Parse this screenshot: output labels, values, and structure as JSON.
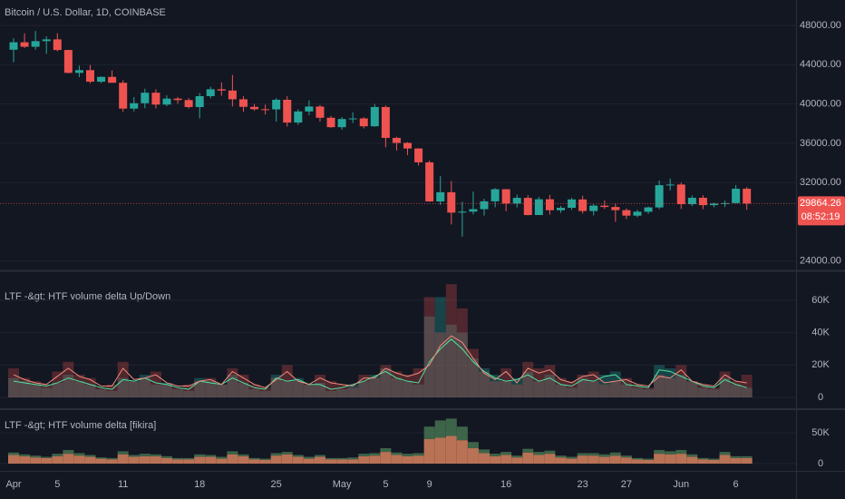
{
  "chart_data": [
    {
      "type": "candlestick",
      "title": "Bitcoin / U.S. Dollar, 1D, COINBASE",
      "categories": [
        "Apr",
        null,
        null,
        null,
        "5",
        null,
        null,
        null,
        null,
        null,
        "11",
        null,
        null,
        null,
        null,
        null,
        null,
        "18",
        null,
        null,
        null,
        null,
        null,
        null,
        "25",
        null,
        null,
        null,
        null,
        null,
        "May",
        null,
        null,
        null,
        "5",
        null,
        null,
        null,
        "9",
        null,
        null,
        null,
        null,
        null,
        null,
        "16",
        null,
        null,
        null,
        null,
        null,
        null,
        "23",
        null,
        null,
        null,
        "27",
        null,
        null,
        null,
        null,
        "Jun",
        null,
        null,
        null,
        null,
        "6",
        null
      ],
      "open": [
        45525,
        46285,
        45830,
        46400,
        46580,
        45500,
        43170,
        43450,
        42270,
        42760,
        42160,
        39530,
        40080,
        41150,
        39940,
        40550,
        40400,
        39690,
        40800,
        41500,
        41370,
        40480,
        39710,
        39470,
        39450,
        40430,
        38110,
        39240,
        39740,
        38600,
        37640,
        38470,
        38530,
        37730,
        39690,
        36550,
        36040,
        35470,
        34060,
        30080,
        31010,
        28940,
        29040,
        29290,
        30090,
        31320,
        29860,
        30440,
        28690,
        30300,
        29180,
        29430,
        30280,
        29100,
        29650,
        29510,
        29190,
        28630,
        29030,
        29470,
        31730,
        31800,
        29800,
        30450,
        29700,
        29860,
        29910,
        31370
      ],
      "high": [
        46700,
        47200,
        47440,
        46890,
        47200,
        45500,
        43900,
        43970,
        42800,
        43420,
        42420,
        40700,
        41560,
        41500,
        40870,
        40710,
        40600,
        41110,
        41760,
        42200,
        42960,
        40800,
        40000,
        39930,
        40600,
        40790,
        39460,
        40370,
        39900,
        38790,
        38670,
        39150,
        38650,
        40000,
        39850,
        36660,
        36120,
        35500,
        34240,
        32650,
        32150,
        30050,
        31080,
        30340,
        31440,
        31320,
        30780,
        30700,
        30540,
        30750,
        29620,
        30440,
        30660,
        29800,
        30190,
        29850,
        29380,
        29230,
        29550,
        32200,
        32400,
        31990,
        30680,
        30700,
        29950,
        30180,
        31750,
        31540
      ],
      "low": [
        44250,
        45700,
        45530,
        45120,
        45360,
        43120,
        42730,
        42110,
        42130,
        42400,
        39200,
        39250,
        39580,
        39550,
        39770,
        40030,
        39550,
        38540,
        40580,
        40850,
        39750,
        39200,
        39300,
        38930,
        38200,
        37700,
        37880,
        38870,
        38200,
        37580,
        37390,
        38060,
        37520,
        37680,
        35580,
        35270,
        34800,
        33730,
        30040,
        29730,
        27730,
        26500,
        28750,
        28630,
        29480,
        29080,
        29460,
        28660,
        28700,
        28740,
        28930,
        29230,
        28850,
        28650,
        29310,
        28010,
        28280,
        28470,
        28820,
        29300,
        31200,
        29310,
        29600,
        29290,
        29480,
        29510,
        29880,
        29220
      ],
      "close": [
        46285,
        45830,
        46400,
        46580,
        45500,
        43170,
        43450,
        42270,
        42760,
        42160,
        39530,
        40080,
        41150,
        39940,
        40550,
        40400,
        39690,
        40800,
        41500,
        41370,
        40480,
        39710,
        39470,
        39450,
        40430,
        38110,
        39240,
        39740,
        38600,
        37640,
        38470,
        38530,
        37730,
        39690,
        36550,
        36040,
        35470,
        34060,
        30080,
        31010,
        28940,
        29040,
        29290,
        30090,
        31320,
        29860,
        30440,
        28690,
        30300,
        29180,
        29430,
        30280,
        29100,
        29650,
        29510,
        29190,
        28630,
        29030,
        29470,
        31730,
        31800,
        29800,
        30450,
        29700,
        29860,
        29910,
        31370,
        29864.26
      ],
      "up_color": "#26a69a",
      "down_color": "#ef5350",
      "ylim": [
        23150,
        50590
      ],
      "yticks": [
        {
          "value": 48000,
          "label": "48000.00"
        },
        {
          "value": 44000,
          "label": "44000.00"
        },
        {
          "value": 40000,
          "label": "40000.00"
        },
        {
          "value": 36000,
          "label": "36000.00"
        },
        {
          "value": 32000,
          "label": "32000.00"
        },
        {
          "value": 24000,
          "label": "24000.00"
        }
      ],
      "grid": true,
      "last_price": {
        "value": 29864.26,
        "label": "29864.26"
      },
      "countdown": "08:52:19"
    },
    {
      "type": "bar",
      "title": "LTF -&gt; HTF volume delta Up/Down",
      "series": [
        {
          "type": "bar",
          "color": "rgba(38,166,154,0.32)",
          "values": [
            12000,
            10000,
            8000,
            6000,
            9000,
            14000,
            10000,
            8000,
            5000,
            4000,
            12000,
            10000,
            14000,
            8000,
            9000,
            5000,
            4000,
            12000,
            10000,
            8000,
            14000,
            9000,
            5000,
            4000,
            14000,
            10000,
            12000,
            8000,
            9000,
            4000,
            5000,
            8000,
            10000,
            14000,
            18000,
            12000,
            10000,
            8000,
            50000,
            62000,
            45000,
            40000,
            24000,
            18000,
            14000,
            10000,
            12000,
            16000,
            10000,
            14000,
            8000,
            6000,
            12000,
            10000,
            14000,
            16000,
            8000,
            6000,
            5000,
            20000,
            18000,
            14000,
            10000,
            6000,
            5000,
            12000,
            8000,
            6000
          ]
        },
        {
          "type": "bar",
          "color": "rgba(239,83,80,0.28)",
          "values": [
            18000,
            12000,
            10000,
            8000,
            16000,
            22000,
            14000,
            12000,
            6000,
            8000,
            22000,
            10000,
            12000,
            16000,
            8000,
            6000,
            8000,
            10000,
            12000,
            8000,
            18000,
            14000,
            8000,
            6000,
            12000,
            20000,
            10000,
            8000,
            14000,
            10000,
            8000,
            6000,
            14000,
            12000,
            20000,
            16000,
            14000,
            18000,
            62000,
            40000,
            70000,
            55000,
            30000,
            16000,
            10000,
            18000,
            8000,
            22000,
            18000,
            20000,
            12000,
            10000,
            14000,
            16000,
            8000,
            10000,
            12000,
            8000,
            6000,
            14000,
            12000,
            20000,
            10000,
            8000,
            6000,
            16000,
            10000,
            14000
          ]
        },
        {
          "type": "line",
          "color": "#4fe3a0",
          "values": [
            10000,
            9000,
            8000,
            7000,
            9000,
            12000,
            10000,
            8000,
            6000,
            5000,
            11000,
            10000,
            12000,
            9000,
            8000,
            6000,
            5000,
            10000,
            9000,
            8000,
            12000,
            9000,
            6000,
            5000,
            12000,
            10000,
            11000,
            8000,
            8000,
            5000,
            6000,
            8000,
            10000,
            13000,
            16000,
            12000,
            10000,
            9000,
            22000,
            30000,
            36000,
            30000,
            22000,
            16000,
            12000,
            10000,
            11000,
            14000,
            10000,
            12000,
            8000,
            7000,
            11000,
            10000,
            13000,
            14000,
            8000,
            7000,
            6000,
            17000,
            16000,
            13000,
            10000,
            7000,
            6000,
            11000,
            8000,
            6000
          ]
        },
        {
          "type": "line",
          "color": "#f08a7a",
          "values": [
            14000,
            11000,
            9000,
            8000,
            13000,
            18000,
            13000,
            11000,
            7000,
            7000,
            18000,
            11000,
            12000,
            14000,
            9000,
            7000,
            7000,
            10000,
            11000,
            8000,
            16000,
            12000,
            8000,
            6000,
            11000,
            16000,
            10000,
            8000,
            12000,
            9000,
            8000,
            7000,
            12000,
            12000,
            18000,
            15000,
            13000,
            15000,
            20000,
            32000,
            38000,
            34000,
            24000,
            15000,
            11000,
            16000,
            9000,
            18000,
            15000,
            17000,
            11000,
            9000,
            13000,
            14000,
            9000,
            10000,
            11000,
            8000,
            7000,
            13000,
            12000,
            17000,
            10000,
            8000,
            7000,
            14000,
            10000,
            9000
          ]
        }
      ],
      "ylim": [
        -6730,
        77400
      ],
      "yticks": [
        {
          "value": 60000,
          "label": "60K"
        },
        {
          "value": 40000,
          "label": "40K"
        },
        {
          "value": 20000,
          "label": "20K"
        },
        0
      ],
      "grid": true
    },
    {
      "type": "stacked_bar",
      "title": "LTF -&gt; HTF volume delta [fikira]",
      "series": [
        {
          "color": "rgba(232,140,100,0.78)",
          "values": [
            14000,
            12000,
            10000,
            9000,
            12000,
            16000,
            13000,
            11000,
            8000,
            7000,
            15000,
            11000,
            12000,
            12000,
            9000,
            7000,
            7000,
            11000,
            11000,
            8000,
            15000,
            12000,
            7000,
            6000,
            13000,
            15000,
            11000,
            8000,
            11000,
            7000,
            7000,
            7000,
            12000,
            13000,
            19000,
            14000,
            12000,
            13000,
            40000,
            42000,
            45000,
            38000,
            25000,
            17000,
            12000,
            14000,
            10000,
            18000,
            14000,
            16000,
            10000,
            8000,
            13000,
            13000,
            11000,
            13000,
            10000,
            7000,
            6000,
            16000,
            15000,
            16000,
            11000,
            7000,
            6000,
            14000,
            9000,
            9000
          ]
        },
        {
          "color": "rgba(72,120,84,0.8)",
          "values": [
            4000,
            3000,
            3000,
            2000,
            4000,
            6000,
            4000,
            3000,
            2000,
            2000,
            5000,
            3000,
            4000,
            3000,
            3000,
            2000,
            2000,
            4000,
            3000,
            3000,
            5000,
            3000,
            2000,
            2000,
            4000,
            4000,
            3000,
            3000,
            3000,
            2000,
            2000,
            3000,
            4000,
            4000,
            6000,
            4000,
            4000,
            4000,
            20000,
            28000,
            28000,
            22000,
            10000,
            6000,
            4000,
            5000,
            3000,
            6000,
            5000,
            5000,
            3000,
            3000,
            4000,
            4000,
            4000,
            5000,
            3000,
            2000,
            2000,
            6000,
            5000,
            6000,
            4000,
            2000,
            2000,
            5000,
            3000,
            3000
          ]
        }
      ],
      "ylim": [
        -10300,
        86800
      ],
      "yticks": [
        {
          "value": 50000,
          "label": "50K"
        },
        0
      ],
      "grid": true
    }
  ]
}
